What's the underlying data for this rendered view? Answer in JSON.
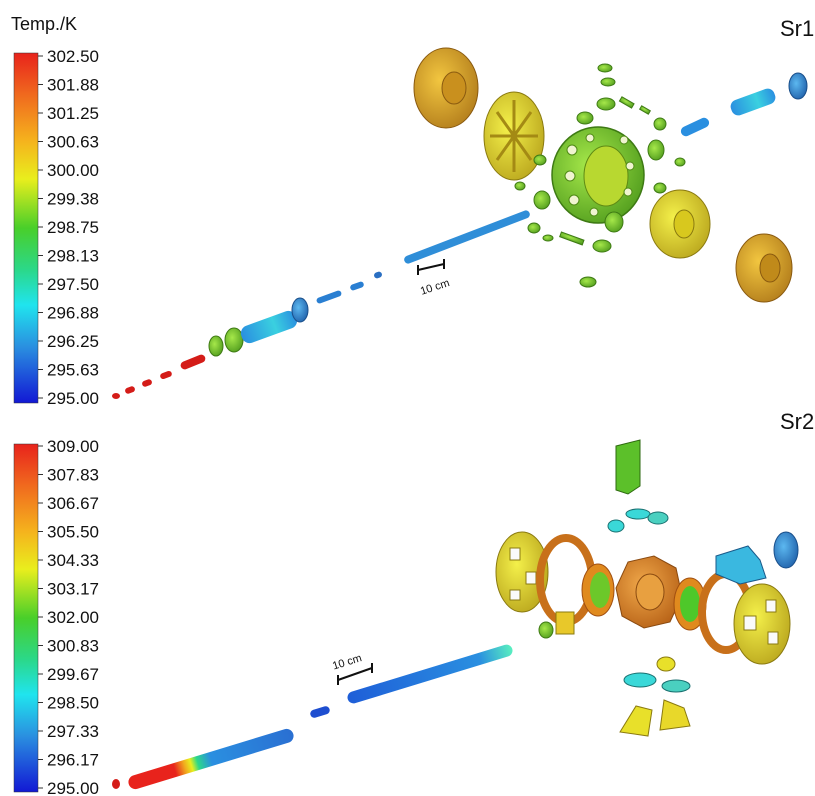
{
  "legend_title": "Temp./K",
  "panels": [
    {
      "label": "Sr1",
      "scale_bar": "10 cm",
      "colorbar_ticks": [
        "302.50",
        "301.88",
        "301.25",
        "300.63",
        "300.00",
        "299.38",
        "298.75",
        "298.13",
        "297.50",
        "296.88",
        "296.25",
        "295.63",
        "295.00"
      ]
    },
    {
      "label": "Sr2",
      "scale_bar": "10 cm",
      "colorbar_ticks": [
        "309.00",
        "307.83",
        "306.67",
        "305.50",
        "304.33",
        "303.17",
        "302.00",
        "300.83",
        "299.67",
        "298.50",
        "297.33",
        "296.17",
        "295.00"
      ]
    }
  ],
  "colors": {
    "hot": "#e8231c",
    "orange": "#e9901e",
    "gold": "#d9a22a",
    "yellow": "#e6e21d",
    "green": "#4fc62a",
    "cyan": "#29d4d8",
    "blue": "#2a7fd2",
    "cold": "#1a2bd6"
  }
}
